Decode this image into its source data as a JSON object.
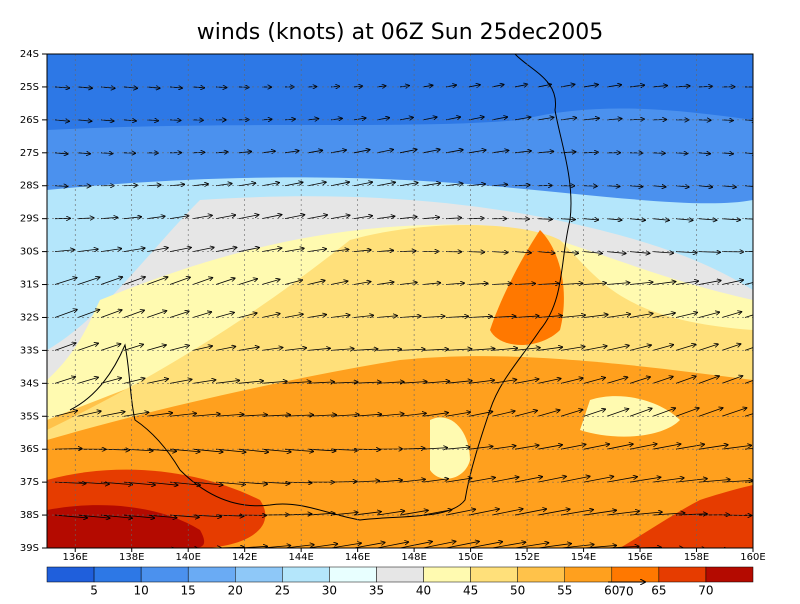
{
  "title": "winds (knots) at 06Z Sun 25dec2005",
  "lat_labels": [
    "24S",
    "25S",
    "26S",
    "27S",
    "28S",
    "29S",
    "30S",
    "31S",
    "32S",
    "33S",
    "34S",
    "35S",
    "36S",
    "37S",
    "38S",
    "39S"
  ],
  "lon_labels": [
    "136E",
    "138E",
    "140E",
    "142E",
    "144E",
    "146E",
    "148E",
    "150E",
    "152E",
    "154E",
    "156E",
    "158E",
    "160E"
  ],
  "colorbar": {
    "levels": [
      5,
      10,
      15,
      20,
      25,
      30,
      35,
      40,
      45,
      50,
      55,
      60,
      65,
      70
    ],
    "colors": [
      "#1f5fdc",
      "#2d78e6",
      "#4b91ee",
      "#6aabf4",
      "#8ec8f8",
      "#b4e6fb",
      "#e8ffff",
      "#e6e6e6",
      "#fffab0",
      "#ffe07a",
      "#ffc24a",
      "#ffa01e",
      "#ff7800",
      "#e63c00",
      "#b40a00"
    ]
  },
  "reference_vector_label": "70"
}
